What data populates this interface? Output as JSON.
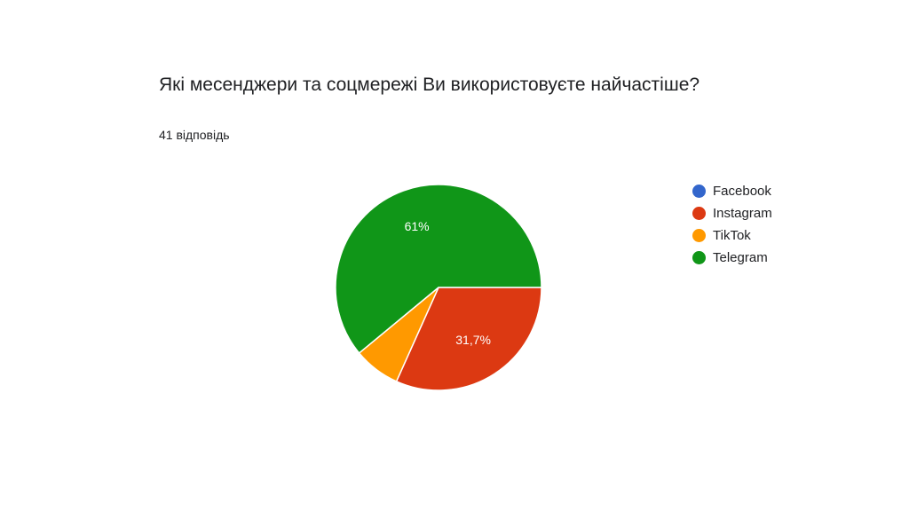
{
  "chart_data": {
    "type": "pie",
    "title": "Які месенджери та соцмережі Ви використовуєте найчастіше?",
    "subtitle": "41 відповідь",
    "legend_position": "right",
    "slices": [
      {
        "name": "Facebook",
        "value": 0,
        "color": "#3366cc",
        "label": ""
      },
      {
        "name": "Instagram",
        "value": 31.7,
        "color": "#dc3912",
        "label": "31,7%"
      },
      {
        "name": "TikTok",
        "value": 7.3,
        "color": "#ff9900",
        "label": ""
      },
      {
        "name": "Telegram",
        "value": 61,
        "color": "#109618",
        "label": "61%"
      }
    ]
  }
}
